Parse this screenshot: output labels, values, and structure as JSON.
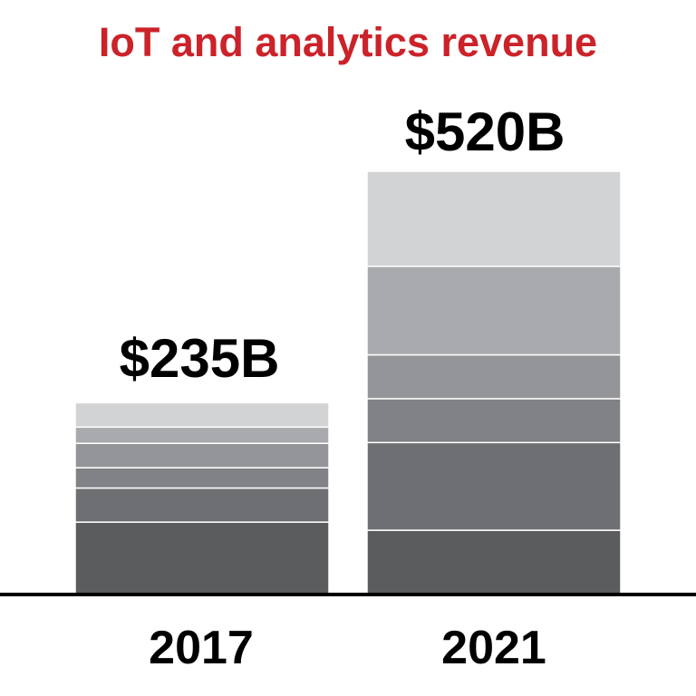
{
  "chart_data": {
    "type": "bar",
    "stacked": true,
    "title": "IoT and analytics revenue",
    "categories": [
      "2017",
      "2021"
    ],
    "totals": [
      235,
      520
    ],
    "total_labels": [
      "$235B",
      "$520B"
    ],
    "unit": "$B",
    "segments_bottom_to_top": [
      [
        88,
        42,
        25,
        30,
        20,
        30
      ],
      [
        78,
        108,
        54,
        54,
        109,
        117
      ]
    ],
    "segment_colors_bottom_to_top": [
      "#5b5c5e",
      "#6e6f72",
      "#818285",
      "#939598",
      "#a9aaad",
      "#d2d3d4"
    ],
    "title_color": "#cc2229",
    "grid": false,
    "legend": "none"
  }
}
